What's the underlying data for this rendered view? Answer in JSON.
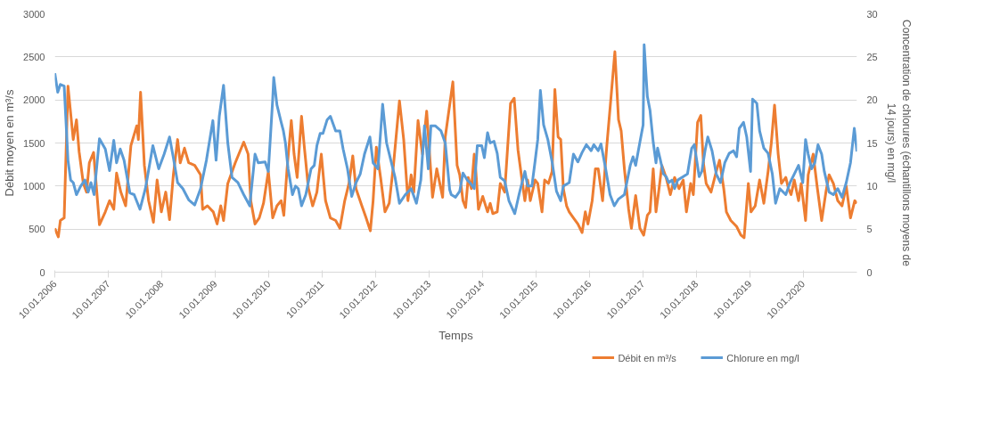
{
  "chart_data": {
    "type": "line",
    "xlabel": "Temps",
    "ylabel": "Débit moyen en m³/s",
    "y2label": "Concentration de chlorures (échantillons moyens de 14 jours) en mg/l",
    "xlim": [
      "2006-01-10",
      "2021-01-12"
    ],
    "xticks": [
      {
        "value": "2006-01-10",
        "label": "10.01.2006"
      },
      {
        "value": "2007-01-10",
        "label": "10.01.2007"
      },
      {
        "value": "2008-01-10",
        "label": "10.01.2008"
      },
      {
        "value": "2009-01-10",
        "label": "10.01.2009"
      },
      {
        "value": "2010-01-10",
        "label": "10.01.2010"
      },
      {
        "value": "2011-01-10",
        "label": "10.01.2011"
      },
      {
        "value": "2012-01-10",
        "label": "10.01.2012"
      },
      {
        "value": "2013-01-10",
        "label": "10.01.2013"
      },
      {
        "value": "2014-01-10",
        "label": "10.01.2014"
      },
      {
        "value": "2015-01-10",
        "label": "10.01.2015"
      },
      {
        "value": "2016-01-10",
        "label": "10.01.2016"
      },
      {
        "value": "2017-01-10",
        "label": "10.01.2017"
      },
      {
        "value": "2018-01-10",
        "label": "10.01.2018"
      },
      {
        "value": "2019-01-10",
        "label": "10.01.2019"
      },
      {
        "value": "2020-01-10",
        "label": "10.01.2020"
      }
    ],
    "ylim": [
      0,
      3000
    ],
    "yticks": [
      0,
      500,
      1000,
      1500,
      2000,
      2500,
      3000
    ],
    "y2lim": [
      0,
      30
    ],
    "y2ticks": [
      0,
      5,
      10,
      15,
      20,
      25,
      30
    ],
    "grid": "y",
    "legend": "bottom right",
    "line_style": "solid",
    "series": [
      {
        "name": "Débit en m³/s",
        "color": "#ed7d31",
        "x": [
          "2006-01-10",
          "2006-02-03",
          "2006-02-17",
          "2006-03-15",
          "2006-04-10",
          "2006-05-16",
          "2006-06-07",
          "2006-06-25",
          "2006-07-24",
          "2006-08-15",
          "2006-09-03",
          "2006-10-02",
          "2006-10-24",
          "2006-11-11",
          "2006-12-21",
          "2007-01-19",
          "2007-02-17",
          "2007-03-08",
          "2007-04-06",
          "2007-05-09",
          "2007-06-14",
          "2007-07-24",
          "2007-08-04",
          "2007-08-19",
          "2007-09-14",
          "2007-10-13",
          "2007-11-15",
          "2007-12-10",
          "2008-01-08",
          "2008-02-07",
          "2008-03-04",
          "2008-03-30",
          "2008-04-28",
          "2008-05-16",
          "2008-06-14",
          "2008-07-13",
          "2008-08-23",
          "2008-10-02",
          "2008-10-16",
          "2008-11-18",
          "2008-12-28",
          "2009-01-23",
          "2009-02-17",
          "2009-03-08",
          "2009-04-06",
          "2009-05-27",
          "2009-07-24",
          "2009-08-23",
          "2009-09-10",
          "2009-10-09",
          "2009-11-07",
          "2009-12-06",
          "2010-01-08",
          "2010-02-07",
          "2010-03-08",
          "2010-04-06",
          "2010-04-24",
          "2010-05-16",
          "2010-06-14",
          "2010-07-03",
          "2010-07-24",
          "2010-08-23",
          "2010-09-10",
          "2010-10-09",
          "2010-11-07",
          "2010-12-06",
          "2011-01-05",
          "2011-02-03",
          "2011-03-08",
          "2011-04-13",
          "2011-05-12",
          "2011-06-14",
          "2011-07-13",
          "2011-08-08",
          "2011-08-30",
          "2011-10-09",
          "2011-11-07",
          "2011-12-06",
          "2011-12-25",
          "2012-01-16",
          "2012-02-14",
          "2012-03-15",
          "2012-04-13",
          "2012-05-12",
          "2012-06-22",
          "2012-07-21",
          "2012-08-19",
          "2012-09-10",
          "2012-09-28",
          "2012-10-27",
          "2012-11-26",
          "2012-12-25",
          "2013-02-03",
          "2013-03-04",
          "2013-04-13",
          "2013-05-01",
          "2013-06-22",
          "2013-07-21",
          "2013-08-08",
          "2013-08-30",
          "2013-09-17",
          "2013-10-05",
          "2013-10-27",
          "2013-11-15",
          "2013-11-26",
          "2013-12-14",
          "2014-01-12",
          "2014-02-14",
          "2014-03-04",
          "2014-03-22",
          "2014-04-21",
          "2014-05-12",
          "2014-06-11",
          "2014-07-21",
          "2014-08-15",
          "2014-09-10",
          "2014-10-05",
          "2014-10-27",
          "2014-11-15",
          "2014-12-03",
          "2015-01-05",
          "2015-01-23",
          "2015-02-21",
          "2015-03-11",
          "2015-04-06",
          "2015-05-01",
          "2015-05-20",
          "2015-06-11",
          "2015-06-29",
          "2015-07-17",
          "2015-08-08",
          "2015-08-26",
          "2015-09-24",
          "2015-10-24",
          "2015-11-22",
          "2015-12-14",
          "2016-01-01",
          "2016-01-30",
          "2016-02-21",
          "2016-03-11",
          "2016-04-10",
          "2016-05-09",
          "2016-06-07",
          "2016-07-03",
          "2016-07-28",
          "2016-08-15",
          "2016-09-06",
          "2016-10-05",
          "2016-10-24",
          "2016-11-22",
          "2016-12-21",
          "2017-01-16",
          "2017-02-10",
          "2017-02-28",
          "2017-03-22",
          "2017-04-10",
          "2017-04-28",
          "2017-05-20",
          "2017-06-18",
          "2017-07-17",
          "2017-08-15",
          "2017-09-14",
          "2017-10-13",
          "2017-11-04",
          "2017-12-03",
          "2017-12-21",
          "2018-01-19",
          "2018-02-10",
          "2018-02-28",
          "2018-03-19",
          "2018-04-21",
          "2018-05-27",
          "2018-06-18",
          "2018-07-17",
          "2018-08-04",
          "2018-09-03",
          "2018-10-13",
          "2018-11-11",
          "2018-12-03",
          "2019-01-01",
          "2019-01-19",
          "2019-02-17",
          "2019-03-19",
          "2019-04-17",
          "2019-05-16",
          "2019-06-07",
          "2019-06-29",
          "2019-07-24",
          "2019-08-15",
          "2019-09-14",
          "2019-10-02",
          "2019-10-20",
          "2019-11-11",
          "2019-12-10",
          "2019-12-28",
          "2020-01-27",
          "2020-02-14",
          "2020-03-19",
          "2020-04-17",
          "2020-05-16",
          "2020-06-14",
          "2020-07-06",
          "2020-08-04",
          "2020-09-03",
          "2020-10-02",
          "2020-10-31",
          "2020-11-29",
          "2020-12-28",
          "2021-01-12"
        ],
        "values": [
          510,
          410,
          600,
          630,
          2160,
          1540,
          1770,
          1400,
          1030,
          930,
          1270,
          1390,
          930,
          550,
          700,
          830,
          730,
          1150,
          930,
          770,
          1470,
          1700,
          1540,
          2090,
          1240,
          830,
          580,
          1070,
          700,
          930,
          610,
          1130,
          1540,
          1270,
          1440,
          1270,
          1240,
          1130,
          730,
          770,
          700,
          560,
          770,
          600,
          1030,
          1270,
          1510,
          1370,
          830,
          560,
          630,
          800,
          1170,
          630,
          770,
          830,
          660,
          1200,
          1760,
          1370,
          1100,
          1810,
          1470,
          970,
          770,
          930,
          1370,
          830,
          630,
          600,
          510,
          830,
          1030,
          1350,
          970,
          770,
          630,
          480,
          830,
          1450,
          1100,
          700,
          800,
          1240,
          1990,
          1540,
          830,
          1130,
          930,
          1760,
          1370,
          1870,
          870,
          1200,
          870,
          1570,
          2210,
          1240,
          1130,
          830,
          750,
          1100,
          970,
          1370,
          1170,
          730,
          880,
          700,
          800,
          680,
          700,
          1030,
          930,
          1960,
          2020,
          1420,
          1100,
          830,
          1070,
          830,
          1070,
          1030,
          700,
          1070,
          1030,
          1170,
          2120,
          1570,
          1540,
          970,
          770,
          700,
          630,
          560,
          460,
          700,
          560,
          830,
          1200,
          1200,
          830,
          1470,
          2040,
          2560,
          1770,
          1640,
          1200,
          730,
          510,
          890,
          510,
          430,
          660,
          700,
          1200,
          700,
          930,
          1240,
          1100,
          900,
          1100,
          970,
          1070,
          700,
          1030,
          900,
          1740,
          1820,
          1270,
          1030,
          930,
          1170,
          1300,
          970,
          700,
          600,
          530,
          430,
          400,
          1030,
          700,
          770,
          1070,
          800,
          1170,
          1500,
          1940,
          1370,
          1030,
          1100,
          970,
          900,
          1070,
          830,
          1030,
          600,
          1130,
          1370,
          970,
          600,
          930,
          1130,
          1030,
          830,
          770,
          1000,
          630,
          830,
          800
        ]
      },
      {
        "name": "Chlorure en mg/l",
        "color": "#5b9bd5",
        "axis": "y2",
        "x": [
          "2006-01-10",
          "2006-01-30",
          "2006-02-17",
          "2006-03-15",
          "2006-04-10",
          "2006-04-28",
          "2006-05-16",
          "2006-06-07",
          "2006-07-06",
          "2006-08-04",
          "2006-08-26",
          "2006-09-14",
          "2006-10-05",
          "2006-11-11",
          "2006-12-21",
          "2007-01-19",
          "2007-02-17",
          "2007-03-08",
          "2007-04-02",
          "2007-04-28",
          "2007-06-07",
          "2007-07-06",
          "2007-08-15",
          "2007-09-21",
          "2007-11-11",
          "2007-12-21",
          "2008-01-27",
          "2008-03-04",
          "2008-03-30",
          "2008-04-28",
          "2008-06-03",
          "2008-07-13",
          "2008-08-23",
          "2008-10-02",
          "2008-11-11",
          "2008-12-25",
          "2009-01-16",
          "2009-02-07",
          "2009-03-08",
          "2009-04-06",
          "2009-05-05",
          "2009-06-14",
          "2009-07-24",
          "2009-08-12",
          "2009-09-03",
          "2009-10-09",
          "2009-10-31",
          "2009-12-17",
          "2010-01-08",
          "2010-02-07",
          "2010-02-14",
          "2010-03-08",
          "2010-04-06",
          "2010-04-21",
          "2010-05-05",
          "2010-05-23",
          "2010-06-22",
          "2010-07-13",
          "2010-08-01",
          "2010-08-23",
          "2010-09-21",
          "2010-10-27",
          "2010-11-18",
          "2010-12-06",
          "2010-12-28",
          "2011-01-16",
          "2011-02-14",
          "2011-03-08",
          "2011-04-13",
          "2011-05-12",
          "2011-06-03",
          "2011-07-03",
          "2011-08-01",
          "2011-08-30",
          "2011-09-28",
          "2011-10-27",
          "2011-12-03",
          "2011-12-25",
          "2012-01-27",
          "2012-02-28",
          "2012-03-26",
          "2012-04-24",
          "2012-05-23",
          "2012-06-22",
          "2012-08-01",
          "2012-09-10",
          "2012-10-16",
          "2012-11-15",
          "2012-12-10",
          "2013-01-05",
          "2013-01-23",
          "2013-02-21",
          "2013-04-02",
          "2013-05-01",
          "2013-05-31",
          "2013-06-11",
          "2013-07-10",
          "2013-08-08",
          "2013-08-30",
          "2013-09-28",
          "2013-10-16",
          "2013-11-15",
          "2013-12-06",
          "2014-01-05",
          "2014-01-23",
          "2014-02-14",
          "2014-03-04",
          "2014-03-30",
          "2014-04-21",
          "2014-05-12",
          "2014-06-11",
          "2014-07-10",
          "2014-08-19",
          "2014-09-17",
          "2014-10-27",
          "2014-11-15",
          "2014-12-14",
          "2015-01-05",
          "2015-01-23",
          "2015-02-10",
          "2015-03-04",
          "2015-04-02",
          "2015-05-01",
          "2015-05-31",
          "2015-06-29",
          "2015-07-17",
          "2015-08-26",
          "2015-09-24",
          "2015-10-24",
          "2015-11-22",
          "2015-12-21",
          "2016-01-23",
          "2016-02-10",
          "2016-03-11",
          "2016-03-30",
          "2016-05-01",
          "2016-05-31",
          "2016-06-29",
          "2016-07-28",
          "2016-09-06",
          "2016-10-16",
          "2016-11-04",
          "2016-11-22",
          "2016-12-21",
          "2017-01-12",
          "2017-01-19",
          "2017-02-10",
          "2017-02-28",
          "2017-03-22",
          "2017-04-10",
          "2017-04-21",
          "2017-05-09",
          "2017-05-31",
          "2017-06-18",
          "2017-07-06",
          "2017-07-28",
          "2017-08-15",
          "2017-09-06",
          "2017-10-13",
          "2017-11-11",
          "2017-12-10",
          "2017-12-28",
          "2018-01-30",
          "2018-02-17",
          "2018-03-11",
          "2018-03-30",
          "2018-04-28",
          "2018-05-27",
          "2018-06-25",
          "2018-07-24",
          "2018-08-23",
          "2018-09-21",
          "2018-10-13",
          "2018-10-31",
          "2018-11-29",
          "2018-12-21",
          "2019-01-16",
          "2019-01-30",
          "2019-02-28",
          "2019-03-19",
          "2019-04-17",
          "2019-05-16",
          "2019-06-14",
          "2019-07-06",
          "2019-08-04",
          "2019-09-14",
          "2019-10-13",
          "2019-11-11",
          "2019-12-10",
          "2020-01-08",
          "2020-01-27",
          "2020-02-14",
          "2020-03-08",
          "2020-03-30",
          "2020-04-21",
          "2020-05-16",
          "2020-06-03",
          "2020-07-06",
          "2020-08-04",
          "2020-09-03",
          "2020-10-02",
          "2020-10-31",
          "2020-11-29",
          "2020-12-25",
          "2021-01-12"
        ],
        "values": [
          23.1,
          20.9,
          21.8,
          21.6,
          13.0,
          10.7,
          10.4,
          9.0,
          10.0,
          10.7,
          9.3,
          10.4,
          9.0,
          15.5,
          14.3,
          11.8,
          15.3,
          12.7,
          14.3,
          13.0,
          9.2,
          9.0,
          7.3,
          9.7,
          14.7,
          12.0,
          13.7,
          15.7,
          13.3,
          10.4,
          9.7,
          8.4,
          7.8,
          9.7,
          13.0,
          17.6,
          13.0,
          18.1,
          21.7,
          15.0,
          11.0,
          10.4,
          9.0,
          8.4,
          7.7,
          13.7,
          12.7,
          12.8,
          11.7,
          20.1,
          22.6,
          19.4,
          17.4,
          16.4,
          15.0,
          12.0,
          9.0,
          10.0,
          9.7,
          7.7,
          9.0,
          12.0,
          12.4,
          14.7,
          16.1,
          16.1,
          17.7,
          18.1,
          16.4,
          16.4,
          14.3,
          12.0,
          8.8,
          10.4,
          11.4,
          13.7,
          15.7,
          12.7,
          12.0,
          19.5,
          15.0,
          13.0,
          11.0,
          8.0,
          9.0,
          9.7,
          8.0,
          10.7,
          17.0,
          12.0,
          17.0,
          17.0,
          16.4,
          15.0,
          9.6,
          9.0,
          8.7,
          9.4,
          11.5,
          10.7,
          10.4,
          9.7,
          14.7,
          14.7,
          13.3,
          16.2,
          15.0,
          15.2,
          13.8,
          11.0,
          10.6,
          8.3,
          6.8,
          9.0,
          11.7,
          10.0,
          10.0,
          12.9,
          15.4,
          21.1,
          17.1,
          15.4,
          12.8,
          9.4,
          8.3,
          10.0,
          10.4,
          13.7,
          12.8,
          13.9,
          14.8,
          14.1,
          14.8,
          14.1,
          14.9,
          12.0,
          9.0,
          7.7,
          8.5,
          9.0,
          12.4,
          13.4,
          12.4,
          15.1,
          17.1,
          26.4,
          20.4,
          18.8,
          15.1,
          12.7,
          14.4,
          13.1,
          11.4,
          11.1,
          10.4,
          10.7,
          9.7,
          10.7,
          11.1,
          11.4,
          14.4,
          14.8,
          11.1,
          11.7,
          14.1,
          15.7,
          14.1,
          11.4,
          10.4,
          12.7,
          13.8,
          14.1,
          13.4,
          16.7,
          17.4,
          15.7,
          11.7,
          20.1,
          19.6,
          16.4,
          14.4,
          13.8,
          11.4,
          8.0,
          9.7,
          9.0,
          10.4,
          11.4,
          12.4,
          10.4,
          15.4,
          13.7,
          12.0,
          12.7,
          14.8,
          13.7,
          11.7,
          9.3,
          9.0,
          9.7,
          8.7,
          10.4,
          12.7,
          16.7,
          14.0
        ]
      }
    ]
  }
}
